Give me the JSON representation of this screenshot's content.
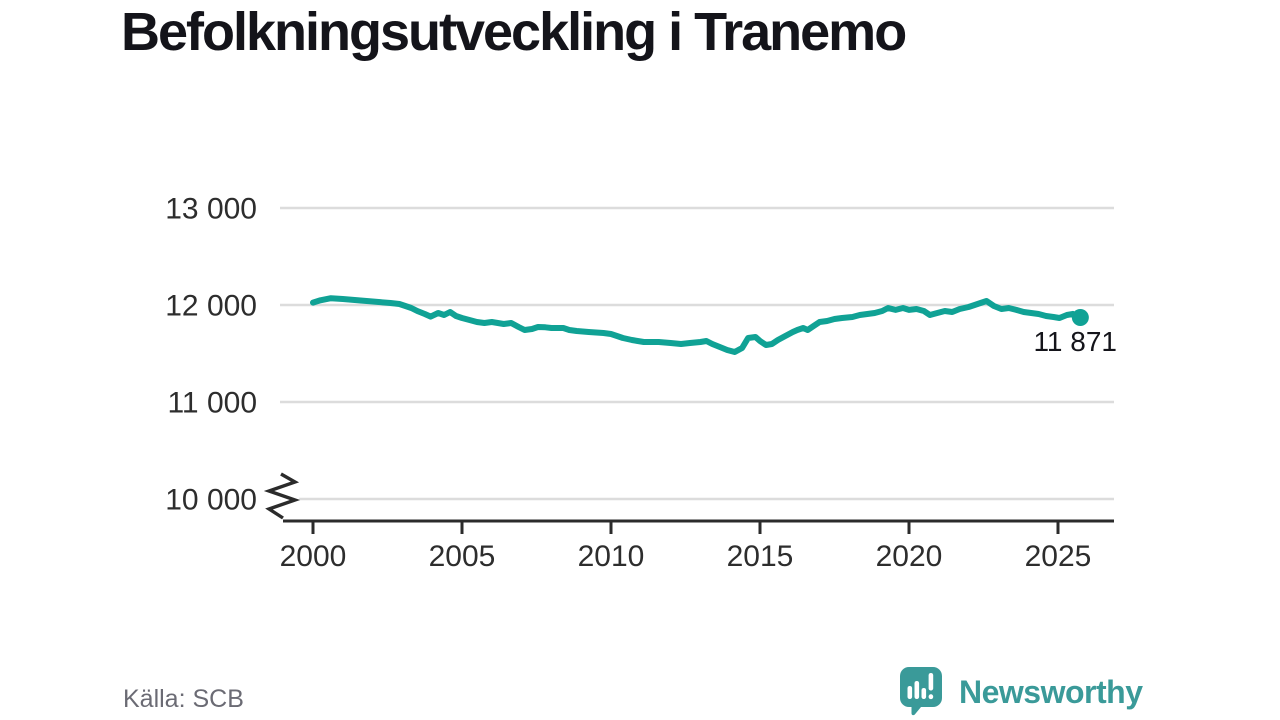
{
  "title": "Befolkningsutveckling i Tranemo",
  "footer": {
    "source": "Källa: SCB",
    "brand": "Newsworthy"
  },
  "colors": {
    "line": "#10a295",
    "grid": "#dcdcdc",
    "axis": "#2b2b2b",
    "tick_text": "#2d2d2d",
    "annotation_text": "#14141a",
    "brand_teal": "#3a9a99",
    "source_gray": "#6b6b74"
  },
  "chart_data": {
    "type": "line",
    "title": "Befolkningsutveckling i Tranemo",
    "xlabel": "",
    "ylabel": "",
    "xlim": [
      1999,
      2027
    ],
    "ylim": [
      10000,
      13000
    ],
    "y_axis_break": true,
    "grid": "horizontal",
    "legend": "none",
    "yticks": [
      {
        "value": 13000,
        "label": "13 000"
      },
      {
        "value": 12000,
        "label": "12 000"
      },
      {
        "value": 11000,
        "label": "11 000"
      },
      {
        "value": 10000,
        "label": "10 000"
      }
    ],
    "xticks": [
      {
        "value": 2000,
        "label": "2000"
      },
      {
        "value": 2005,
        "label": "2005"
      },
      {
        "value": 2010,
        "label": "2010"
      },
      {
        "value": 2015,
        "label": "2015"
      },
      {
        "value": 2020,
        "label": "2020"
      },
      {
        "value": 2025,
        "label": "2025"
      }
    ],
    "annotation": {
      "label": "11 871",
      "x": 2025.75,
      "y": 11871
    },
    "series": [
      {
        "name": "befolkning",
        "points": [
          [
            2000.0,
            12025
          ],
          [
            2000.25,
            12048
          ],
          [
            2000.6,
            12070
          ],
          [
            2001.0,
            12062
          ],
          [
            2001.4,
            12052
          ],
          [
            2001.8,
            12041
          ],
          [
            2002.2,
            12031
          ],
          [
            2002.6,
            12021
          ],
          [
            2002.9,
            12010
          ],
          [
            2003.1,
            11990
          ],
          [
            2003.3,
            11969
          ],
          [
            2003.5,
            11938
          ],
          [
            2003.75,
            11907
          ],
          [
            2003.95,
            11880
          ],
          [
            2004.2,
            11918
          ],
          [
            2004.4,
            11897
          ],
          [
            2004.6,
            11928
          ],
          [
            2004.8,
            11887
          ],
          [
            2005.0,
            11866
          ],
          [
            2005.25,
            11845
          ],
          [
            2005.5,
            11825
          ],
          [
            2005.75,
            11814
          ],
          [
            2006.0,
            11825
          ],
          [
            2006.2,
            11814
          ],
          [
            2006.4,
            11804
          ],
          [
            2006.65,
            11814
          ],
          [
            2006.9,
            11773
          ],
          [
            2007.1,
            11742
          ],
          [
            2007.35,
            11753
          ],
          [
            2007.55,
            11773
          ],
          [
            2007.8,
            11770
          ],
          [
            2008.0,
            11763
          ],
          [
            2008.4,
            11763
          ],
          [
            2008.6,
            11742
          ],
          [
            2008.85,
            11732
          ],
          [
            2009.25,
            11722
          ],
          [
            2009.75,
            11711
          ],
          [
            2010.0,
            11701
          ],
          [
            2010.2,
            11680
          ],
          [
            2010.4,
            11660
          ],
          [
            2010.7,
            11639
          ],
          [
            2011.1,
            11619
          ],
          [
            2011.6,
            11619
          ],
          [
            2012.0,
            11608
          ],
          [
            2012.35,
            11598
          ],
          [
            2012.65,
            11608
          ],
          [
            2013.0,
            11619
          ],
          [
            2013.2,
            11629
          ],
          [
            2013.4,
            11598
          ],
          [
            2013.65,
            11567
          ],
          [
            2013.9,
            11536
          ],
          [
            2014.15,
            11515
          ],
          [
            2014.4,
            11557
          ],
          [
            2014.6,
            11660
          ],
          [
            2014.85,
            11670
          ],
          [
            2015.0,
            11629
          ],
          [
            2015.2,
            11588
          ],
          [
            2015.4,
            11598
          ],
          [
            2015.6,
            11639
          ],
          [
            2015.85,
            11680
          ],
          [
            2016.1,
            11722
          ],
          [
            2016.25,
            11742
          ],
          [
            2016.45,
            11763
          ],
          [
            2016.6,
            11742
          ],
          [
            2016.8,
            11783
          ],
          [
            2017.0,
            11825
          ],
          [
            2017.25,
            11835
          ],
          [
            2017.5,
            11856
          ],
          [
            2017.75,
            11866
          ],
          [
            2018.1,
            11876
          ],
          [
            2018.35,
            11897
          ],
          [
            2018.6,
            11907
          ],
          [
            2018.85,
            11918
          ],
          [
            2019.1,
            11938
          ],
          [
            2019.3,
            11969
          ],
          [
            2019.55,
            11949
          ],
          [
            2019.8,
            11969
          ],
          [
            2020.0,
            11949
          ],
          [
            2020.25,
            11959
          ],
          [
            2020.5,
            11938
          ],
          [
            2020.7,
            11897
          ],
          [
            2020.95,
            11918
          ],
          [
            2021.2,
            11938
          ],
          [
            2021.45,
            11928
          ],
          [
            2021.7,
            11959
          ],
          [
            2022.0,
            11979
          ],
          [
            2022.2,
            12000
          ],
          [
            2022.4,
            12021
          ],
          [
            2022.6,
            12041
          ],
          [
            2022.85,
            11990
          ],
          [
            2023.1,
            11959
          ],
          [
            2023.35,
            11969
          ],
          [
            2023.6,
            11949
          ],
          [
            2023.85,
            11928
          ],
          [
            2024.1,
            11918
          ],
          [
            2024.35,
            11907
          ],
          [
            2024.6,
            11887
          ],
          [
            2024.85,
            11876
          ],
          [
            2025.05,
            11866
          ],
          [
            2025.3,
            11897
          ],
          [
            2025.5,
            11908
          ],
          [
            2025.75,
            11871
          ]
        ]
      }
    ],
    "source": "SCB"
  }
}
